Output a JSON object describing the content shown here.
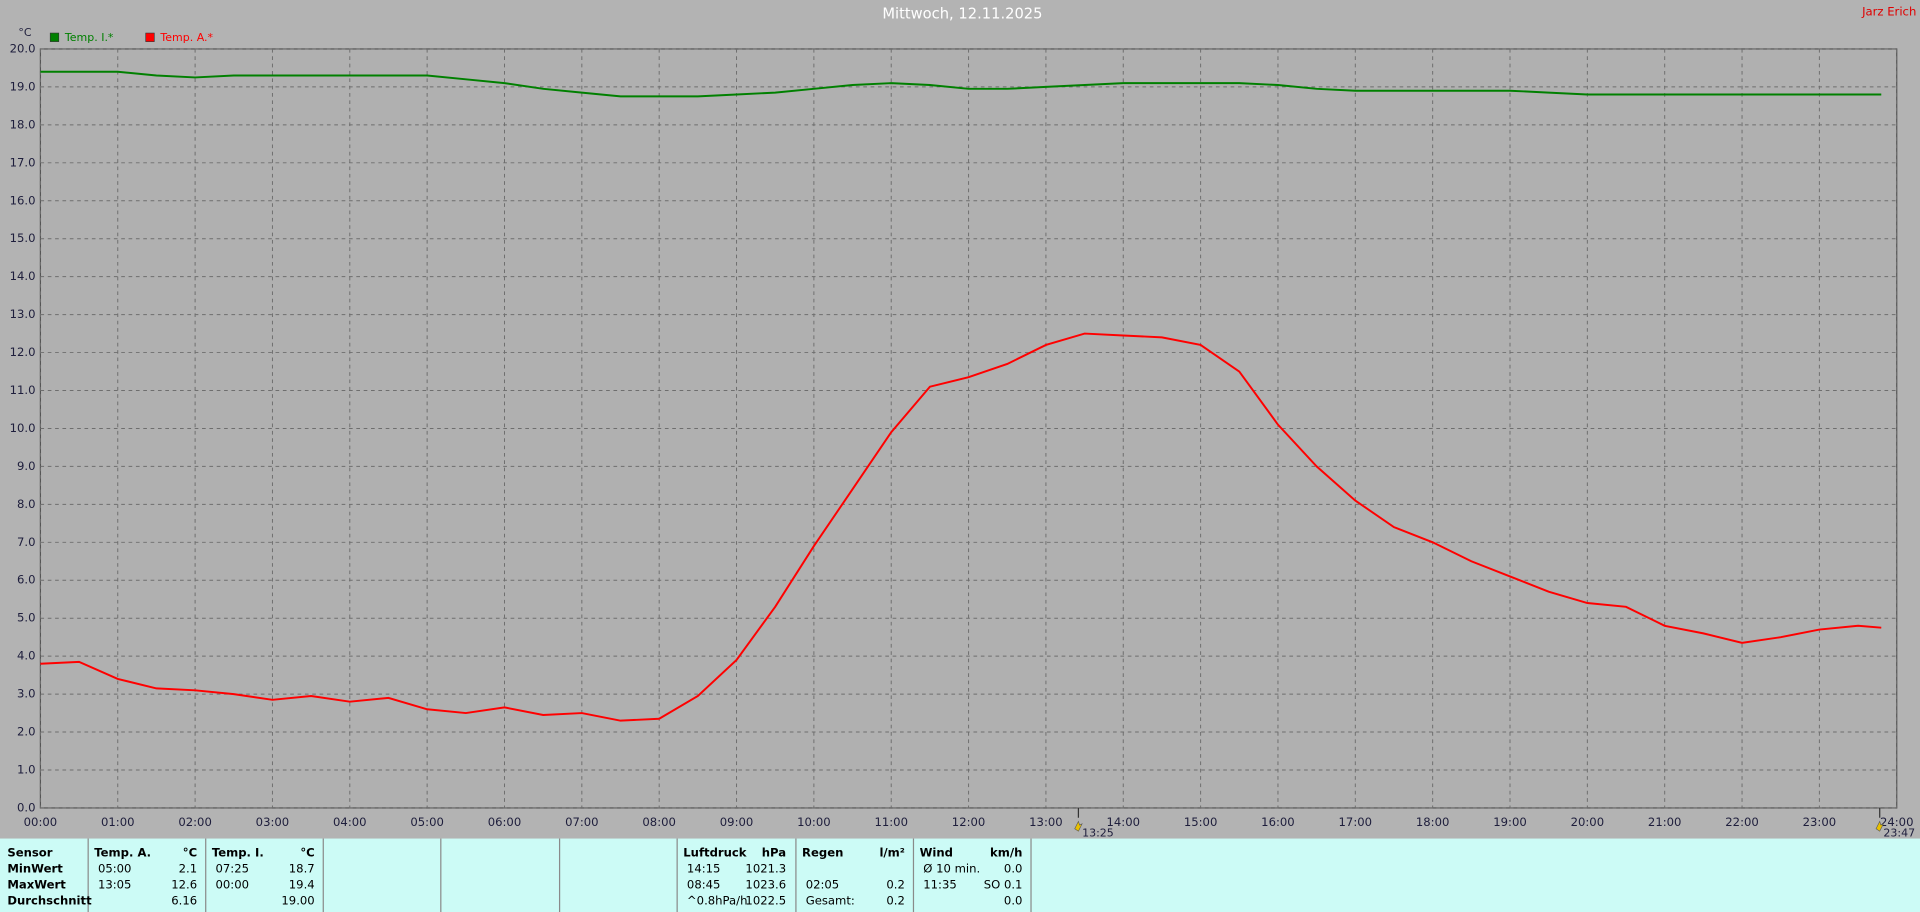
{
  "chart_data": {
    "type": "line",
    "title": "Mittwoch, 12.11.2025",
    "owner": "Jarz Erich",
    "y_unit": "°C",
    "x": [
      0,
      0.5,
      1,
      1.5,
      2,
      2.5,
      3,
      3.5,
      4,
      4.5,
      5,
      5.5,
      6,
      6.5,
      7,
      7.5,
      8,
      8.5,
      9,
      9.5,
      10,
      10.5,
      11,
      11.5,
      12,
      12.5,
      13,
      13.5,
      14,
      14.5,
      15,
      15.5,
      16,
      16.5,
      17,
      17.5,
      18,
      18.5,
      19,
      19.5,
      20,
      20.5,
      21,
      21.5,
      22,
      22.5,
      23,
      23.5,
      23.8
    ],
    "series": [
      {
        "name": "Temp. I.*",
        "color": "#008000",
        "values": [
          19.4,
          19.4,
          19.4,
          19.3,
          19.25,
          19.3,
          19.3,
          19.3,
          19.3,
          19.3,
          19.3,
          19.2,
          19.1,
          18.95,
          18.85,
          18.75,
          18.75,
          18.75,
          18.8,
          18.85,
          18.95,
          19.05,
          19.1,
          19.05,
          18.95,
          18.95,
          19.0,
          19.05,
          19.1,
          19.1,
          19.1,
          19.1,
          19.05,
          18.95,
          18.9,
          18.9,
          18.9,
          18.9,
          18.9,
          18.85,
          18.8,
          18.8,
          18.8,
          18.8,
          18.8,
          18.8,
          18.8,
          18.8,
          18.8
        ]
      },
      {
        "name": "Temp. A.*",
        "color": "#ff0000",
        "values": [
          3.8,
          3.85,
          3.4,
          3.15,
          3.1,
          3.0,
          2.85,
          2.95,
          2.8,
          2.9,
          2.6,
          2.5,
          2.65,
          2.45,
          2.5,
          2.3,
          2.35,
          2.95,
          3.9,
          5.3,
          6.9,
          8.4,
          9.9,
          11.1,
          11.35,
          11.7,
          12.2,
          12.5,
          12.45,
          12.4,
          12.2,
          11.5,
          10.1,
          9.0,
          8.1,
          7.4,
          7.0,
          6.5,
          6.1,
          5.7,
          5.4,
          5.3,
          4.8,
          4.6,
          4.35,
          4.5,
          4.7,
          4.8,
          4.75
        ]
      }
    ],
    "xlim": [
      0,
      24
    ],
    "xticks": [
      {
        "value": 0,
        "label": "00:00"
      },
      {
        "value": 1,
        "label": "01:00"
      },
      {
        "value": 2,
        "label": "02:00"
      },
      {
        "value": 3,
        "label": "03:00"
      },
      {
        "value": 4,
        "label": "04:00"
      },
      {
        "value": 5,
        "label": "05:00"
      },
      {
        "value": 6,
        "label": "06:00"
      },
      {
        "value": 7,
        "label": "07:00"
      },
      {
        "value": 8,
        "label": "08:00"
      },
      {
        "value": 9,
        "label": "09:00"
      },
      {
        "value": 10,
        "label": "10:00"
      },
      {
        "value": 11,
        "label": "11:00"
      },
      {
        "value": 12,
        "label": "12:00"
      },
      {
        "value": 13,
        "label": "13:00"
      },
      {
        "value": 14,
        "label": "14:00"
      },
      {
        "value": 15,
        "label": "15:00"
      },
      {
        "value": 16,
        "label": "16:00"
      },
      {
        "value": 17,
        "label": "17:00"
      },
      {
        "value": 18,
        "label": "18:00"
      },
      {
        "value": 19,
        "label": "19:00"
      },
      {
        "value": 20,
        "label": "20:00"
      },
      {
        "value": 21,
        "label": "21:00"
      },
      {
        "value": 22,
        "label": "22:00"
      },
      {
        "value": 23,
        "label": "23:00"
      },
      {
        "value": 24,
        "label": "24:00"
      }
    ],
    "ylim": [
      0,
      20
    ],
    "yticks": [
      {
        "value": 0,
        "label": "0.0"
      },
      {
        "value": 1,
        "label": "1.0"
      },
      {
        "value": 2,
        "label": "2.0"
      },
      {
        "value": 3,
        "label": "3.0"
      },
      {
        "value": 4,
        "label": "4.0"
      },
      {
        "value": 5,
        "label": "5.0"
      },
      {
        "value": 6,
        "label": "6.0"
      },
      {
        "value": 7,
        "label": "7.0"
      },
      {
        "value": 8,
        "label": "8.0"
      },
      {
        "value": 9,
        "label": "9.0"
      },
      {
        "value": 10,
        "label": "10.0"
      },
      {
        "value": 11,
        "label": "11.0"
      },
      {
        "value": 12,
        "label": "12.0"
      },
      {
        "value": 13,
        "label": "13.0"
      },
      {
        "value": 14,
        "label": "14.0"
      },
      {
        "value": 15,
        "label": "15.0"
      },
      {
        "value": 16,
        "label": "16.0"
      },
      {
        "value": 17,
        "label": "17.0"
      },
      {
        "value": 18,
        "label": "18.0"
      },
      {
        "value": 19,
        "label": "19.0"
      },
      {
        "value": 20,
        "label": "20.0"
      }
    ],
    "grid": true,
    "legend": "top-left",
    "markers": [
      {
        "x": 13.42,
        "label": "13:25"
      },
      {
        "x": 23.78,
        "label": "23:47"
      }
    ]
  },
  "stats_table": {
    "row_labels": [
      "Sensor",
      "MinWert",
      "MaxWert",
      "Durchschnitt"
    ],
    "groups": [
      {
        "header": "Temp. A.",
        "unit": "°C",
        "rows": [
          [
            "05:00",
            "2.1"
          ],
          [
            "13:05",
            "12.6"
          ],
          [
            null,
            "6.16"
          ]
        ]
      },
      {
        "header": "Temp. I.",
        "unit": "°C",
        "rows": [
          [
            "07:25",
            "18.7"
          ],
          [
            "00:00",
            "19.4"
          ],
          [
            null,
            "19.00"
          ]
        ]
      },
      {
        "header": "Luftdruck",
        "unit": "hPa",
        "rows": [
          [
            "14:15",
            "1021.3"
          ],
          [
            "08:45",
            "1023.6"
          ],
          [
            "^0.8hPa/h",
            "1022.5"
          ]
        ]
      },
      {
        "header": "Regen",
        "unit": "l/m²",
        "rows": [
          [
            null,
            null
          ],
          [
            "02:05",
            "0.2"
          ],
          [
            "Gesamt:",
            "0.2"
          ]
        ]
      },
      {
        "header": "Wind",
        "unit": "km/h",
        "rows": [
          [
            "Ø 10 min.",
            "0.0"
          ],
          [
            "11:35",
            "SO 0.1"
          ],
          [
            null,
            "0.0"
          ]
        ]
      }
    ]
  }
}
